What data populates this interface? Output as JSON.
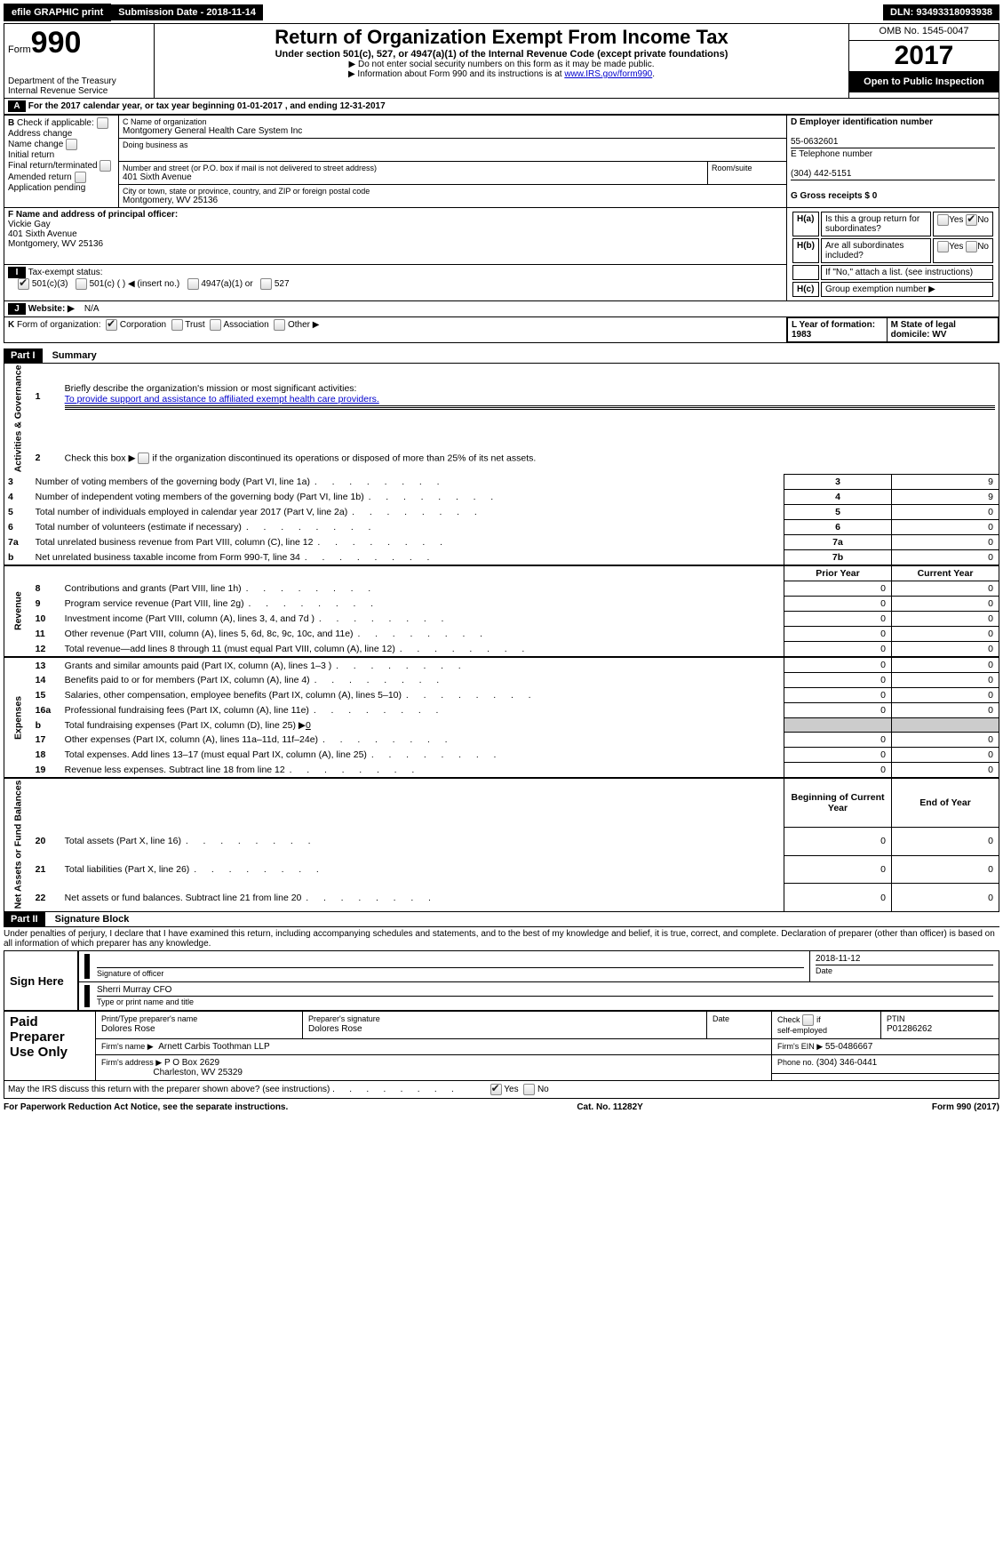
{
  "topbar": {
    "efile": "efile GRAPHIC print",
    "submission": "Submission Date - 2018-11-14",
    "dln": "DLN: 93493318093938"
  },
  "header": {
    "form_prefix": "Form",
    "form_number": "990",
    "dept": "Department of the Treasury",
    "irs": "Internal Revenue Service",
    "title": "Return of Organization Exempt From Income Tax",
    "subtitle": "Under section 501(c), 527, or 4947(a)(1) of the Internal Revenue Code (except private foundations)",
    "note1": "▶ Do not enter social security numbers on this form as it may be made public.",
    "note2_pre": "▶ Information about Form 990 and its instructions is at ",
    "note2_link": "www.IRS.gov/form990",
    "omb": "OMB No. 1545-0047",
    "year": "2017",
    "open_public": "Open to Public Inspection"
  },
  "section_a": {
    "label": "A",
    "text": "For the 2017 calendar year, or tax year beginning 01-01-2017",
    "ending": ", and ending 12-31-2017"
  },
  "section_b": {
    "label": "B",
    "check_if": "Check if applicable:",
    "items": [
      "Address change",
      "Name change",
      "Initial return",
      "Final return/terminated",
      "Amended return",
      "Application pending"
    ]
  },
  "section_c": {
    "name_label": "C Name of organization",
    "name": "Montgomery General Health Care System Inc",
    "dba_label": "Doing business as",
    "addr_label": "Number and street (or P.O. box if mail is not delivered to street address)",
    "room_label": "Room/suite",
    "addr": "401 Sixth Avenue",
    "city_label": "City or town, state or province, country, and ZIP or foreign postal code",
    "city": "Montgomery, WV  25136"
  },
  "section_d": {
    "label": "D Employer identification number",
    "value": "55-0632601"
  },
  "section_e": {
    "label": "E Telephone number",
    "value": "(304) 442-5151"
  },
  "section_f": {
    "label": "F Name and address of principal officer:",
    "name": "Vickie Gay",
    "addr1": "401 Sixth Avenue",
    "addr2": "Montgomery, WV  25136"
  },
  "section_g": {
    "label": "G Gross receipts $ 0"
  },
  "section_h": {
    "ha": "H(a)",
    "ha_text": "Is this a group return for subordinates?",
    "hb": "H(b)",
    "hb_text": "Are all subordinates included?",
    "hb_note": "If \"No,\" attach a list. (see instructions)",
    "hc": "H(c)",
    "hc_text": "Group exemption number ▶",
    "yes": "Yes",
    "no": "No"
  },
  "section_i": {
    "label": "I",
    "text": "Tax-exempt status:",
    "opts": [
      "501(c)(3)",
      "501(c) (   ) ◀ (insert no.)",
      "4947(a)(1) or",
      "527"
    ]
  },
  "section_j": {
    "label": "J",
    "text": "Website: ▶",
    "value": "N/A"
  },
  "section_k": {
    "label": "K",
    "text": "Form of organization:",
    "opts": [
      "Corporation",
      "Trust",
      "Association",
      "Other ▶"
    ]
  },
  "section_l": {
    "label": "L Year of formation: 1983"
  },
  "section_m": {
    "label": "M State of legal domicile: WV"
  },
  "part1": {
    "header": "Part I",
    "title": "Summary",
    "line1_label": "1",
    "line1": "Briefly describe the organization's mission or most significant activities:",
    "line1_value": "To provide support and assistance to affiliated exempt health care providers.",
    "line2_label": "2",
    "line2": "Check this box ▶",
    "line2_suffix": "if the organization discontinued its operations or disposed of more than 25% of its net assets.",
    "governance_rows": [
      {
        "n": "3",
        "desc": "Number of voting members of the governing body (Part VI, line 1a)",
        "box": "3",
        "val": "9"
      },
      {
        "n": "4",
        "desc": "Number of independent voting members of the governing body (Part VI, line 1b)",
        "box": "4",
        "val": "9"
      },
      {
        "n": "5",
        "desc": "Total number of individuals employed in calendar year 2017 (Part V, line 2a)",
        "box": "5",
        "val": "0"
      },
      {
        "n": "6",
        "desc": "Total number of volunteers (estimate if necessary)",
        "box": "6",
        "val": "0"
      },
      {
        "n": "7a",
        "desc": "Total unrelated business revenue from Part VIII, column (C), line 12",
        "box": "7a",
        "val": "0"
      },
      {
        "n": "b",
        "desc": "Net unrelated business taxable income from Form 990-T, line 34",
        "box": "7b",
        "val": "0"
      }
    ],
    "col_headers": {
      "prior": "Prior Year",
      "current": "Current Year",
      "begin": "Beginning of Current Year",
      "end": "End of Year"
    },
    "revenue_rows": [
      {
        "n": "8",
        "desc": "Contributions and grants (Part VIII, line 1h)",
        "prior": "0",
        "curr": "0"
      },
      {
        "n": "9",
        "desc": "Program service revenue (Part VIII, line 2g)",
        "prior": "0",
        "curr": "0"
      },
      {
        "n": "10",
        "desc": "Investment income (Part VIII, column (A), lines 3, 4, and 7d )",
        "prior": "0",
        "curr": "0"
      },
      {
        "n": "11",
        "desc": "Other revenue (Part VIII, column (A), lines 5, 6d, 8c, 9c, 10c, and 11e)",
        "prior": "0",
        "curr": "0"
      },
      {
        "n": "12",
        "desc": "Total revenue—add lines 8 through 11 (must equal Part VIII, column (A), line 12)",
        "prior": "0",
        "curr": "0"
      }
    ],
    "expense_rows": [
      {
        "n": "13",
        "desc": "Grants and similar amounts paid (Part IX, column (A), lines 1–3 )",
        "prior": "0",
        "curr": "0"
      },
      {
        "n": "14",
        "desc": "Benefits paid to or for members (Part IX, column (A), line 4)",
        "prior": "0",
        "curr": "0"
      },
      {
        "n": "15",
        "desc": "Salaries, other compensation, employee benefits (Part IX, column (A), lines 5–10)",
        "prior": "0",
        "curr": "0"
      },
      {
        "n": "16a",
        "desc": "Professional fundraising fees (Part IX, column (A), line 11e)",
        "prior": "0",
        "curr": "0"
      }
    ],
    "line_b": {
      "n": "b",
      "desc": "Total fundraising expenses (Part IX, column (D), line 25) ▶",
      "val": "0"
    },
    "expense_rows2": [
      {
        "n": "17",
        "desc": "Other expenses (Part IX, column (A), lines 11a–11d, 11f–24e)",
        "prior": "0",
        "curr": "0"
      },
      {
        "n": "18",
        "desc": "Total expenses. Add lines 13–17 (must equal Part IX, column (A), line 25)",
        "prior": "0",
        "curr": "0"
      },
      {
        "n": "19",
        "desc": "Revenue less expenses. Subtract line 18 from line 12",
        "prior": "0",
        "curr": "0"
      }
    ],
    "netassets_rows": [
      {
        "n": "20",
        "desc": "Total assets (Part X, line 16)",
        "prior": "0",
        "curr": "0"
      },
      {
        "n": "21",
        "desc": "Total liabilities (Part X, line 26)",
        "prior": "0",
        "curr": "0"
      },
      {
        "n": "22",
        "desc": "Net assets or fund balances. Subtract line 21 from line 20",
        "prior": "0",
        "curr": "0"
      }
    ],
    "vlabels": {
      "gov": "Activities & Governance",
      "rev": "Revenue",
      "exp": "Expenses",
      "net": "Net Assets or Fund Balances"
    }
  },
  "part2": {
    "header": "Part II",
    "title": "Signature Block",
    "penalty": "Under penalties of perjury, I declare that I have examined this return, including accompanying schedules and statements, and to the best of my knowledge and belief, it is true, correct, and complete. Declaration of preparer (other than officer) is based on all information of which preparer has any knowledge.",
    "sign_here": "Sign Here",
    "sig_officer": "Signature of officer",
    "date": "Date",
    "sig_date": "2018-11-12",
    "officer_name": "Sherri Murray  CFO",
    "type_name": "Type or print name and title",
    "paid_preparer": "Paid Preparer Use Only",
    "prep_name_label": "Print/Type preparer's name",
    "prep_name": "Dolores Rose",
    "prep_sig_label": "Preparer's signature",
    "prep_sig": "Dolores Rose",
    "check_self": "Check",
    "self_emp": "self-employed",
    "ptin_label": "PTIN",
    "ptin": "P01286262",
    "firm_name_label": "Firm's name    ▶",
    "firm_name": "Arnett Carbis Toothman LLP",
    "firm_ein_label": "Firm's EIN ▶",
    "firm_ein": "55-0486667",
    "firm_addr_label": "Firm's address ▶",
    "firm_addr1": "P O Box 2629",
    "firm_addr2": "Charleston, WV  25329",
    "phone_label": "Phone no.",
    "phone": "(304) 346-0441",
    "discuss": "May the IRS discuss this return with the preparer shown above? (see instructions)",
    "yes": "Yes",
    "no": "No",
    "if": "if"
  },
  "footer": {
    "paperwork": "For Paperwork Reduction Act Notice, see the separate instructions.",
    "catno": "Cat. No. 11282Y",
    "formyear": "Form 990 (2017)"
  }
}
